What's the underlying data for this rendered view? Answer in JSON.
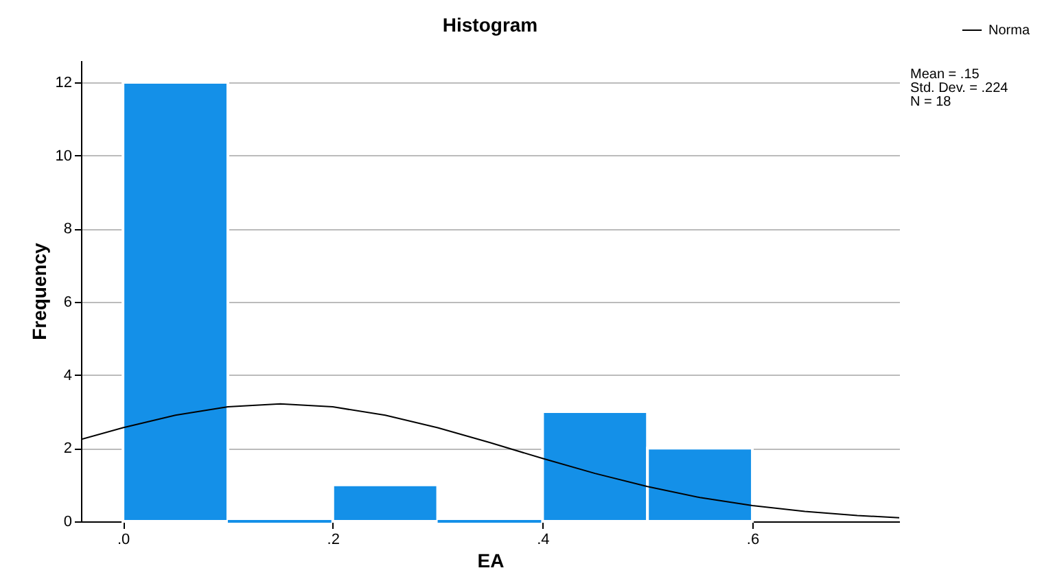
{
  "chart_data": {
    "type": "histogram",
    "title": "Histogram",
    "xlabel": "EA",
    "ylabel": "Frequency",
    "bins": [
      0,
      0.1,
      0.2,
      0.3,
      0.4,
      0.5,
      0.6
    ],
    "values": [
      12,
      0,
      1,
      0,
      3,
      2
    ],
    "color": "#1490e8",
    "series": [
      {
        "type": "line",
        "name": "Norma",
        "color": "#000000",
        "x": [
          -0.04,
          0,
          0.05,
          0.1,
          0.15,
          0.2,
          0.25,
          0.3,
          0.35,
          0.4,
          0.45,
          0.5,
          0.55,
          0.6,
          0.65,
          0.7,
          0.74
        ],
        "values": [
          2.24,
          2.56,
          2.9,
          3.13,
          3.21,
          3.13,
          2.9,
          2.56,
          2.15,
          1.72,
          1.31,
          0.95,
          0.65,
          0.43,
          0.27,
          0.16,
          0.1
        ]
      }
    ],
    "xlim": [
      -0.04,
      0.74
    ],
    "xticks": [
      {
        "value": 0,
        "label": ".0"
      },
      {
        "value": 0.2,
        "label": ".2"
      },
      {
        "value": 0.4,
        "label": ".4"
      },
      {
        "value": 0.6,
        "label": ".6"
      }
    ],
    "ylim": [
      0,
      12.6
    ],
    "yticks": [
      0,
      2,
      4,
      6,
      8,
      10,
      12
    ],
    "grid": "y",
    "legend": "top right",
    "annotations": [
      "Mean = .15",
      "Std. Dev. = .224",
      "N = 18"
    ]
  }
}
